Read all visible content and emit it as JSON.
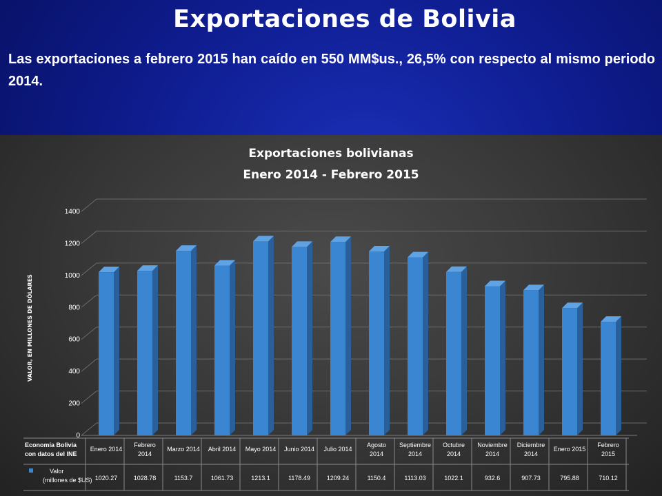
{
  "slide": {
    "title": "Exportaciones de Bolivia",
    "subtitle": "Las exportaciones a febrero 2015 han caído en 550 MM$us., 26,5% con respecto al mismo periodo 2014."
  },
  "colors": {
    "background": "#0e1c8e",
    "panel": "#3a3a3a",
    "bar_front": "#3b86d2",
    "bar_side": "#2a5f99",
    "bar_top": "#5fa3e4",
    "grid": "#6b6b6b",
    "text": "#ffffff"
  },
  "chart_data": {
    "type": "bar",
    "title": "Exportaciones bolivianas",
    "subtitle": "Enero 2014 - Febrero 2015",
    "ylabel": "VALOR, EN MILLONES DE DÓLARES",
    "ylim": [
      0,
      1400
    ],
    "yticks": [
      0,
      200,
      400,
      600,
      800,
      1000,
      1200,
      1400
    ],
    "grid": true,
    "categories": [
      [
        "Enero 2014"
      ],
      [
        "Febrero",
        "2014"
      ],
      [
        "Marzo 2014"
      ],
      [
        "Abril 2014"
      ],
      [
        "Mayo 2014"
      ],
      [
        "Junio 2014"
      ],
      [
        "Julio 2014"
      ],
      [
        "Agosto",
        "2014"
      ],
      [
        "Septiembre",
        "2014"
      ],
      [
        "Octubre",
        "2014"
      ],
      [
        "Noviembre",
        "2014"
      ],
      [
        "Diciembre",
        "2014"
      ],
      [
        "Enero 2015"
      ],
      [
        "Febrero",
        "2015"
      ]
    ],
    "series": [
      {
        "name": "Valor",
        "legend_label": [
          "Valor",
          "(millones de $US)"
        ],
        "values": [
          1020.27,
          1028.78,
          1153.7,
          1061.73,
          1213.1,
          1178.49,
          1209.24,
          1150.4,
          1113.03,
          1022.1,
          932.6,
          907.73,
          795.88,
          710.12
        ],
        "value_labels": [
          "1020.27",
          "1028.78",
          "1153.7",
          "1061.73",
          "1213.1",
          "1178.49",
          "1209.24",
          "1150.4",
          "1113.03",
          "1022.1",
          "932.6",
          "907.73",
          "795.88",
          "710.12"
        ]
      }
    ],
    "table_corner_label": [
      "Economía Bolivia",
      "con datos del INE"
    ]
  }
}
